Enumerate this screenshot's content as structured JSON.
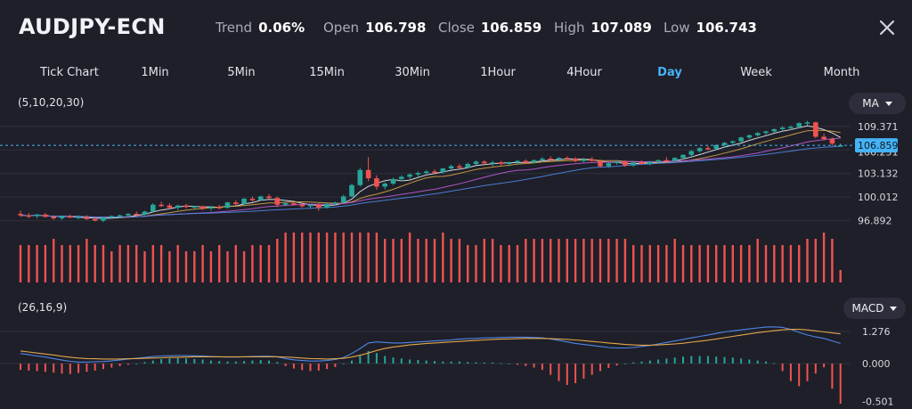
{
  "header": {
    "symbol": "AUDJPY-ECN",
    "trend_label": "Trend",
    "trend_value": "0.06%",
    "open_label": "Open",
    "open_value": "106.798",
    "close_label": "Close",
    "close_value": "106.859",
    "high_label": "High",
    "high_value": "107.089",
    "low_label": "Low",
    "low_value": "106.743",
    "close_icon": "close-icon"
  },
  "tabs": [
    {
      "label": "Tick Chart"
    },
    {
      "label": "1Min"
    },
    {
      "label": "5Min"
    },
    {
      "label": "15Min"
    },
    {
      "label": "30Min"
    },
    {
      "label": "1Hour"
    },
    {
      "label": "4Hour"
    },
    {
      "label": "Day"
    },
    {
      "label": "Week"
    },
    {
      "label": "Month"
    }
  ],
  "active_tab": "Day",
  "price_panel": {
    "indicator_params": "(5,10,20,30)",
    "indicator_select": "MA",
    "y_labels": [
      "109.371",
      "103.132",
      "100.012",
      "96.892"
    ],
    "partial_label": "106.251",
    "current_price": "106.859"
  },
  "macd_panel": {
    "indicator_params": "(26,16,9)",
    "indicator_select": "MACD",
    "y_labels": [
      "1.276",
      "0.000",
      "-0.501"
    ]
  },
  "colors": {
    "background": "#1e1f29",
    "up": "#26a69a",
    "down": "#ef5350",
    "accent": "#45b3f5",
    "grid": "#2e313d",
    "ma_lines": [
      "#e9ecf2",
      "#d6a447",
      "#c05bd6",
      "#4f87e6"
    ],
    "macd_dif": "#4f87e6",
    "macd_dea": "#e3a64a"
  },
  "chart_data": {
    "type": "candlestick",
    "timeframe": "Day",
    "ylim": [
      95.2,
      111.0
    ],
    "ohlc": [
      [
        97.8,
        98.2,
        97.4,
        97.6
      ],
      [
        97.6,
        97.9,
        97.2,
        97.5
      ],
      [
        97.5,
        97.8,
        97.2,
        97.7
      ],
      [
        97.7,
        97.9,
        97.3,
        97.4
      ],
      [
        97.4,
        97.6,
        97.0,
        97.2
      ],
      [
        97.2,
        97.6,
        97.0,
        97.5
      ],
      [
        97.5,
        97.7,
        97.2,
        97.3
      ],
      [
        97.3,
        97.6,
        97.1,
        97.4
      ],
      [
        97.4,
        97.6,
        97.0,
        97.1
      ],
      [
        97.1,
        97.3,
        96.8,
        96.9
      ],
      [
        96.9,
        97.4,
        96.7,
        97.3
      ],
      [
        97.3,
        97.6,
        97.1,
        97.5
      ],
      [
        97.5,
        97.7,
        97.2,
        97.6
      ],
      [
        97.6,
        97.9,
        97.4,
        97.8
      ],
      [
        97.8,
        98.1,
        97.5,
        97.7
      ],
      [
        97.7,
        98.2,
        97.6,
        98.1
      ],
      [
        98.1,
        99.2,
        98.0,
        99.0
      ],
      [
        99.0,
        99.4,
        98.7,
        98.9
      ],
      [
        98.9,
        99.2,
        98.4,
        98.6
      ],
      [
        98.6,
        99.0,
        98.3,
        98.9
      ],
      [
        98.9,
        99.1,
        98.5,
        98.7
      ],
      [
        98.7,
        98.9,
        98.4,
        98.8
      ],
      [
        98.8,
        98.9,
        98.3,
        98.5
      ],
      [
        98.5,
        98.8,
        98.2,
        98.7
      ],
      [
        98.7,
        99.0,
        98.4,
        98.6
      ],
      [
        98.6,
        99.4,
        98.5,
        99.3
      ],
      [
        99.3,
        99.6,
        98.9,
        99.1
      ],
      [
        99.1,
        99.9,
        99.0,
        99.8
      ],
      [
        99.8,
        100.1,
        99.4,
        99.6
      ],
      [
        99.6,
        100.2,
        99.5,
        100.1
      ],
      [
        100.1,
        100.4,
        99.8,
        99.9
      ],
      [
        99.9,
        100.1,
        98.7,
        99.0
      ],
      [
        99.0,
        99.3,
        98.8,
        99.2
      ],
      [
        99.2,
        99.4,
        98.9,
        99.0
      ],
      [
        99.0,
        99.2,
        98.6,
        98.8
      ],
      [
        98.8,
        99.1,
        98.5,
        99.0
      ],
      [
        99.0,
        99.2,
        98.2,
        98.6
      ],
      [
        98.6,
        99.2,
        98.5,
        99.1
      ],
      [
        99.1,
        99.4,
        98.9,
        99.3
      ],
      [
        99.3,
        100.3,
        99.2,
        100.1
      ],
      [
        100.1,
        101.8,
        100.0,
        101.6
      ],
      [
        101.6,
        103.9,
        101.4,
        103.6
      ],
      [
        103.6,
        105.3,
        102.1,
        102.5
      ],
      [
        102.5,
        102.9,
        101.0,
        101.4
      ],
      [
        101.4,
        102.0,
        101.0,
        101.8
      ],
      [
        101.8,
        102.6,
        101.6,
        102.4
      ],
      [
        102.4,
        102.9,
        102.1,
        102.7
      ],
      [
        102.7,
        103.2,
        102.4,
        103.0
      ],
      [
        103.0,
        103.4,
        102.6,
        103.2
      ],
      [
        103.2,
        103.6,
        102.9,
        103.4
      ],
      [
        103.4,
        103.7,
        103.0,
        103.3
      ],
      [
        103.3,
        103.9,
        103.1,
        103.8
      ],
      [
        103.8,
        104.3,
        103.6,
        104.1
      ],
      [
        104.1,
        104.4,
        103.7,
        103.9
      ],
      [
        103.9,
        104.6,
        103.8,
        104.4
      ],
      [
        104.4,
        104.9,
        104.2,
        104.7
      ],
      [
        104.7,
        104.9,
        104.3,
        104.5
      ],
      [
        104.5,
        104.8,
        104.1,
        104.6
      ],
      [
        104.6,
        104.8,
        104.2,
        104.4
      ],
      [
        104.4,
        104.7,
        104.1,
        104.6
      ],
      [
        104.6,
        104.9,
        104.3,
        104.8
      ],
      [
        104.8,
        105.0,
        104.4,
        104.6
      ],
      [
        104.6,
        105.0,
        104.5,
        104.9
      ],
      [
        104.9,
        105.3,
        104.7,
        105.1
      ],
      [
        105.1,
        105.4,
        104.8,
        105.0
      ],
      [
        105.0,
        105.3,
        104.7,
        105.2
      ],
      [
        105.2,
        105.4,
        104.9,
        105.1
      ],
      [
        105.1,
        105.3,
        104.6,
        104.8
      ],
      [
        104.8,
        105.2,
        104.6,
        105.0
      ],
      [
        105.0,
        105.3,
        104.7,
        104.8
      ],
      [
        104.8,
        105.0,
        103.9,
        104.1
      ],
      [
        104.1,
        104.6,
        103.9,
        104.5
      ],
      [
        104.5,
        104.9,
        104.3,
        104.7
      ],
      [
        104.7,
        104.9,
        104.0,
        104.2
      ],
      [
        104.2,
        104.7,
        104.0,
        104.6
      ],
      [
        104.6,
        104.9,
        104.3,
        104.4
      ],
      [
        104.4,
        104.8,
        104.2,
        104.7
      ],
      [
        104.7,
        105.0,
        104.5,
        104.9
      ],
      [
        104.9,
        105.3,
        104.6,
        104.8
      ],
      [
        104.8,
        105.3,
        104.7,
        105.2
      ],
      [
        105.2,
        105.7,
        105.0,
        105.6
      ],
      [
        105.6,
        106.2,
        105.4,
        106.1
      ],
      [
        106.1,
        106.6,
        105.9,
        106.5
      ],
      [
        106.5,
        106.8,
        106.2,
        106.4
      ],
      [
        106.4,
        107.0,
        106.3,
        106.9
      ],
      [
        106.9,
        107.3,
        106.6,
        107.2
      ],
      [
        107.2,
        107.5,
        106.9,
        107.4
      ],
      [
        107.4,
        108.0,
        107.2,
        107.9
      ],
      [
        107.9,
        108.3,
        107.7,
        108.2
      ],
      [
        108.2,
        108.6,
        108.0,
        108.5
      ],
      [
        108.5,
        108.8,
        108.2,
        108.7
      ],
      [
        108.7,
        109.1,
        108.5,
        109.0
      ],
      [
        109.0,
        109.4,
        108.7,
        109.2
      ],
      [
        109.2,
        109.5,
        108.9,
        109.3
      ],
      [
        109.3,
        109.9,
        109.1,
        109.8
      ],
      [
        109.8,
        110.1,
        109.5,
        109.9
      ],
      [
        109.9,
        110.0,
        107.8,
        108.0
      ],
      [
        108.0,
        108.4,
        107.5,
        107.7
      ],
      [
        107.7,
        107.9,
        106.8,
        107.1
      ],
      [
        106.8,
        107.089,
        106.743,
        106.859
      ]
    ],
    "volume": [
      6,
      6,
      6,
      6,
      7,
      6,
      6,
      6,
      7,
      6,
      6,
      5,
      6,
      6,
      6,
      5,
      6,
      6,
      5,
      6,
      5,
      5,
      6,
      5,
      6,
      5,
      6,
      5,
      6,
      6,
      6,
      7,
      8,
      8,
      8,
      8,
      8,
      8,
      8,
      8,
      8,
      8,
      8,
      8,
      7,
      7,
      7,
      8,
      7,
      7,
      7,
      8,
      7,
      7,
      6,
      6,
      7,
      7,
      6,
      6,
      6,
      7,
      7,
      7,
      7,
      7,
      7,
      7,
      7,
      7,
      7,
      7,
      7,
      7,
      6,
      6,
      6,
      6,
      6,
      7,
      6,
      6,
      6,
      6,
      6,
      6,
      6,
      6,
      6,
      7,
      6,
      6,
      6,
      6,
      6,
      7,
      7,
      8,
      7,
      2
    ],
    "macd_hist": [
      -0.25,
      -0.28,
      -0.3,
      -0.33,
      -0.36,
      -0.4,
      -0.42,
      -0.38,
      -0.33,
      -0.28,
      -0.22,
      -0.16,
      -0.1,
      -0.05,
      0.0,
      0.06,
      0.12,
      0.18,
      0.2,
      0.22,
      0.2,
      0.18,
      0.16,
      0.12,
      0.1,
      0.08,
      0.08,
      0.1,
      0.12,
      0.14,
      0.12,
      0.06,
      -0.1,
      -0.2,
      -0.26,
      -0.3,
      -0.28,
      -0.22,
      -0.14,
      0.0,
      0.12,
      0.3,
      0.5,
      0.42,
      0.3,
      0.24,
      0.2,
      0.16,
      0.14,
      0.12,
      0.1,
      0.08,
      0.08,
      0.08,
      0.06,
      0.05,
      0.04,
      0.04,
      0.02,
      0.0,
      -0.05,
      -0.1,
      -0.16,
      -0.25,
      -0.45,
      -0.7,
      -0.85,
      -0.78,
      -0.6,
      -0.45,
      -0.3,
      -0.18,
      -0.08,
      0.0,
      0.05,
      0.08,
      0.12,
      0.16,
      0.2,
      0.24,
      0.28,
      0.3,
      0.3,
      0.3,
      0.28,
      0.26,
      0.24,
      0.2,
      0.16,
      0.12,
      0.08,
      0.02,
      -0.3,
      -0.7,
      -0.9,
      -0.7,
      -0.4,
      -0.15,
      -1.0,
      -1.6
    ],
    "macd_dif": [
      0.4,
      0.35,
      0.3,
      0.26,
      0.2,
      0.14,
      0.09,
      0.06,
      0.06,
      0.07,
      0.08,
      0.11,
      0.14,
      0.18,
      0.21,
      0.24,
      0.28,
      0.3,
      0.31,
      0.32,
      0.32,
      0.31,
      0.3,
      0.28,
      0.27,
      0.26,
      0.26,
      0.27,
      0.28,
      0.29,
      0.29,
      0.27,
      0.2,
      0.15,
      0.12,
      0.1,
      0.1,
      0.12,
      0.16,
      0.24,
      0.4,
      0.6,
      0.82,
      0.86,
      0.84,
      0.82,
      0.82,
      0.84,
      0.86,
      0.88,
      0.9,
      0.92,
      0.94,
      0.97,
      0.99,
      1.0,
      1.02,
      1.03,
      1.04,
      1.05,
      1.05,
      1.05,
      1.04,
      1.02,
      0.98,
      0.92,
      0.86,
      0.8,
      0.76,
      0.72,
      0.68,
      0.64,
      0.62,
      0.62,
      0.64,
      0.68,
      0.72,
      0.78,
      0.84,
      0.9,
      0.96,
      1.02,
      1.08,
      1.14,
      1.2,
      1.26,
      1.3,
      1.34,
      1.38,
      1.42,
      1.45,
      1.46,
      1.44,
      1.36,
      1.24,
      1.14,
      1.06,
      1.0,
      0.9,
      0.8
    ],
    "macd_dea": [
      0.5,
      0.46,
      0.42,
      0.38,
      0.34,
      0.29,
      0.25,
      0.22,
      0.2,
      0.19,
      0.18,
      0.18,
      0.18,
      0.19,
      0.2,
      0.21,
      0.22,
      0.23,
      0.24,
      0.25,
      0.26,
      0.27,
      0.27,
      0.27,
      0.27,
      0.27,
      0.27,
      0.27,
      0.27,
      0.27,
      0.27,
      0.27,
      0.26,
      0.24,
      0.22,
      0.2,
      0.19,
      0.18,
      0.19,
      0.21,
      0.26,
      0.33,
      0.42,
      0.52,
      0.6,
      0.66,
      0.7,
      0.74,
      0.77,
      0.8,
      0.82,
      0.84,
      0.86,
      0.88,
      0.9,
      0.92,
      0.94,
      0.96,
      0.97,
      0.98,
      0.99,
      1.0,
      1.0,
      1.0,
      0.99,
      0.98,
      0.96,
      0.94,
      0.91,
      0.88,
      0.85,
      0.82,
      0.79,
      0.76,
      0.74,
      0.73,
      0.73,
      0.74,
      0.76,
      0.78,
      0.81,
      0.85,
      0.89,
      0.93,
      0.98,
      1.03,
      1.08,
      1.13,
      1.18,
      1.23,
      1.27,
      1.31,
      1.34,
      1.36,
      1.36,
      1.34,
      1.3,
      1.26,
      1.22,
      1.18
    ]
  }
}
